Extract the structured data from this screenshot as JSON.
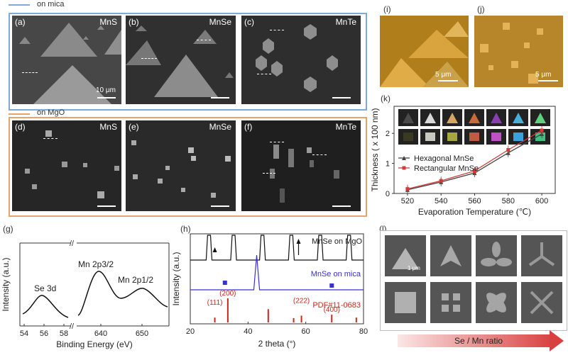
{
  "top_legend": {
    "mica": "on mica",
    "mgo": "on MgO"
  },
  "panels": {
    "a": {
      "label": "(a)",
      "material": "MnS",
      "scale": "10 μm"
    },
    "b": {
      "label": "(b)",
      "material": "MnSe"
    },
    "c": {
      "label": "(c)",
      "material": "MnTe"
    },
    "d": {
      "label": "(d)",
      "material": "MnS"
    },
    "e": {
      "label": "(e)",
      "material": "MnSe"
    },
    "f": {
      "label": "(f)",
      "material": "MnTe"
    },
    "i": {
      "label": "(i)",
      "scale": "5 μm"
    },
    "j": {
      "label": "(j)",
      "scale": "5 μm"
    },
    "k": {
      "label": "(k)"
    },
    "g": {
      "label": "(g)"
    },
    "h": {
      "label": "(h)"
    },
    "l": {
      "label": "(l)",
      "scale": "1 μm",
      "arrow_text": "Se / Mn ratio"
    }
  },
  "colors": {
    "mica_box": "#7fa9d6",
    "mgo_box": "#e7a36a",
    "series_hex": "#444444",
    "series_rect": "#d23a3a",
    "xrd_mica": "#3a2fd6",
    "xrd_pdf": "#c8281c",
    "arrow_red": "#d94040"
  },
  "chart_data": [
    {
      "id": "k",
      "type": "line",
      "xlabel": "Evaporation Temperature (℃)",
      "ylabel": "Thickness ( x 100 nm)",
      "x": [
        520,
        540,
        560,
        580,
        600
      ],
      "xticks": [
        "520",
        "540",
        "560",
        "580",
        "600"
      ],
      "yticks": [
        "0",
        "1",
        "2"
      ],
      "xlim": [
        512,
        608
      ],
      "ylim": [
        0,
        2.9
      ],
      "series": [
        {
          "name": "Hexagonal  MnSe",
          "values": [
            0.12,
            0.38,
            0.68,
            1.35,
            1.98
          ]
        },
        {
          "name": "Rectangular MnSe",
          "values": [
            0.15,
            0.42,
            0.75,
            1.45,
            2.1
          ]
        }
      ],
      "legend": "center-left"
    },
    {
      "id": "g",
      "type": "line",
      "xlabel": "Binding Energy (eV)",
      "ylabel": "Intensity (a.u.)",
      "xticks_left": [
        "54",
        "56",
        "58"
      ],
      "xticks_right": [
        "640",
        "650"
      ],
      "annotations": [
        "Se 3d",
        "Mn 2p3/2",
        "Mn 2p1/2"
      ]
    },
    {
      "id": "h",
      "type": "line",
      "xlabel": "2 theta (°)",
      "ylabel": "Intensity (a.u.)",
      "xticks": [
        "20",
        "40",
        "60",
        "80"
      ],
      "xlim": [
        20,
        80
      ],
      "series": [
        {
          "name": "MnSe on MgO"
        },
        {
          "name": "MnSe on mica"
        },
        {
          "name": "PDF#11-0683"
        }
      ],
      "pdf_peaks": [
        {
          "x": 28.5,
          "h": 0.2,
          "label": "(111)"
        },
        {
          "x": 33.0,
          "h": 1.0,
          "label": "(200)"
        },
        {
          "x": 47.0,
          "h": 0.55,
          "label": ""
        },
        {
          "x": 55.8,
          "h": 0.18,
          "label": ""
        },
        {
          "x": 58.5,
          "h": 0.28,
          "label": "(222)"
        },
        {
          "x": 69.0,
          "h": 0.32,
          "label": "(400)"
        },
        {
          "x": 77.5,
          "h": 0.2,
          "label": ""
        }
      ]
    }
  ]
}
